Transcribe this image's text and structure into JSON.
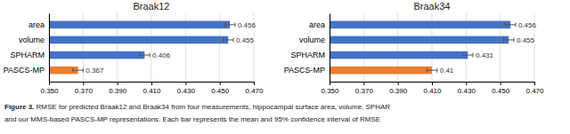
{
  "chart_data": [
    {
      "type": "bar",
      "orientation": "horizontal",
      "title": "Braak12",
      "categories": [
        "area",
        "volume",
        "SPHARM",
        "PASCS-MP"
      ],
      "values": [
        0.456,
        0.455,
        0.406,
        0.367
      ],
      "error": [
        0.003,
        0.003,
        0.003,
        0.003
      ],
      "colors": [
        "#4472C4",
        "#4472C4",
        "#4472C4",
        "#ED7D31"
      ],
      "xlim": [
        0.35,
        0.47
      ],
      "xticks": [
        {
          "value": 0.35,
          "label": "0.350"
        },
        {
          "value": 0.37,
          "label": "0.370"
        },
        {
          "value": 0.39,
          "label": "0.390"
        },
        {
          "value": 0.41,
          "label": "0.410"
        },
        {
          "value": 0.43,
          "label": "0.430"
        },
        {
          "value": 0.45,
          "label": "0.450"
        },
        {
          "value": 0.47,
          "label": "0.470"
        }
      ],
      "grid": true,
      "data_labels": true,
      "annotations": [
        "Figure 3.",
        " RMSE for predicted Braak12 and Braak34 from four measurements, hippocampal surface area, volume, SPHAR",
        "and our MMS-based PASCS-MP representations. Each bar represents the mean and 95% confidence interval of RMSE"
      ]
    },
    {
      "type": "bar",
      "orientation": "horizontal",
      "title": "Braak34",
      "categories": [
        "area",
        "volume",
        "SPHARM",
        "PASCS-MP"
      ],
      "values": [
        0.456,
        0.455,
        0.431,
        0.41
      ],
      "error": [
        0.003,
        0.003,
        0.003,
        0.003
      ],
      "colors": [
        "#4472C4",
        "#4472C4",
        "#4472C4",
        "#ED7D31"
      ],
      "xlim": [
        0.35,
        0.47
      ],
      "xticks": [
        {
          "value": 0.35,
          "label": "0.350"
        },
        {
          "value": 0.37,
          "label": "0.370"
        },
        {
          "value": 0.39,
          "label": "0.390"
        },
        {
          "value": 0.41,
          "label": "0.410"
        },
        {
          "value": 0.43,
          "label": "0.430"
        },
        {
          "value": 0.45,
          "label": "0.450"
        },
        {
          "value": 0.47,
          "label": "0.470"
        }
      ],
      "grid": true,
      "data_labels": true
    }
  ]
}
